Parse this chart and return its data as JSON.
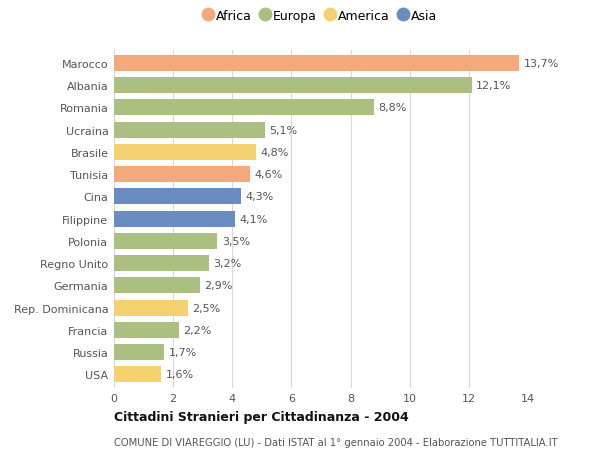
{
  "countries": [
    "Marocco",
    "Albania",
    "Romania",
    "Ucraina",
    "Brasile",
    "Tunisia",
    "Cina",
    "Filippine",
    "Polonia",
    "Regno Unito",
    "Germania",
    "Rep. Dominicana",
    "Francia",
    "Russia",
    "USA"
  ],
  "values": [
    13.7,
    12.1,
    8.8,
    5.1,
    4.8,
    4.6,
    4.3,
    4.1,
    3.5,
    3.2,
    2.9,
    2.5,
    2.2,
    1.7,
    1.6
  ],
  "labels": [
    "13,7%",
    "12,1%",
    "8,8%",
    "5,1%",
    "4,8%",
    "4,6%",
    "4,3%",
    "4,1%",
    "3,5%",
    "3,2%",
    "2,9%",
    "2,5%",
    "2,2%",
    "1,7%",
    "1,6%"
  ],
  "regions": [
    "Africa",
    "Europa",
    "Europa",
    "Europa",
    "America",
    "Africa",
    "Asia",
    "Asia",
    "Europa",
    "Europa",
    "Europa",
    "America",
    "Europa",
    "Europa",
    "America"
  ],
  "colors": {
    "Africa": "#F4A97A",
    "Europa": "#AABF80",
    "America": "#F5D270",
    "Asia": "#6B8CC0"
  },
  "legend_order": [
    "Africa",
    "Europa",
    "America",
    "Asia"
  ],
  "title_bold": "Cittadini Stranieri per Cittadinanza - 2004",
  "subtitle": "COMUNE DI VIAREGGIO (LU) - Dati ISTAT al 1° gennaio 2004 - Elaborazione TUTTITALIA.IT",
  "xlim": [
    0,
    14
  ],
  "xticks": [
    0,
    2,
    4,
    6,
    8,
    10,
    12,
    14
  ],
  "background_color": "#ffffff",
  "grid_color": "#d8d8d8",
  "bar_height": 0.72,
  "figure_bg": "#ffffff",
  "label_fontsize": 8,
  "ytick_fontsize": 8,
  "xtick_fontsize": 8
}
